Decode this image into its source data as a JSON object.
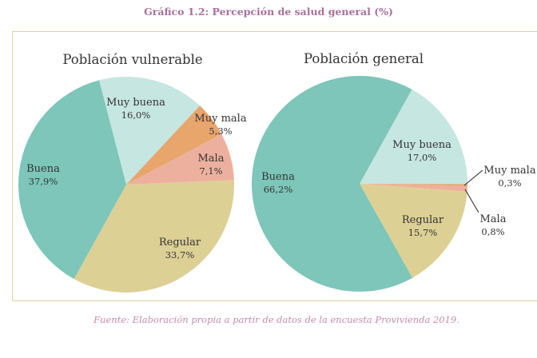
{
  "title": "Gráfico 1.2: Percepción de salud general (%)",
  "source": "Fuente: Elaboración propia a partir de datos de la encuesta Provivienda 2019.",
  "colors": {
    "Buena": "#7dc6b9",
    "Muy buena": "#c6e6e1",
    "Muy mala": "#e8a56c",
    "Mala": "#eeb09e",
    "Regular": "#ddd094"
  },
  "chart_data": [
    {
      "type": "pie",
      "title": "Población vulnerable",
      "slices": [
        {
          "label": "Muy buena",
          "value": 16.0,
          "text": "16,0%"
        },
        {
          "label": "Muy mala",
          "value": 5.3,
          "text": "5,3%"
        },
        {
          "label": "Mala",
          "value": 7.1,
          "text": "7,1%"
        },
        {
          "label": "Regular",
          "value": 33.7,
          "text": "33,7%"
        },
        {
          "label": "Buena",
          "value": 37.9,
          "text": "37,9%"
        }
      ]
    },
    {
      "type": "pie",
      "title": "Población general",
      "slices": [
        {
          "label": "Muy buena",
          "value": 17.0,
          "text": "17,0%"
        },
        {
          "label": "Muy mala",
          "value": 0.3,
          "text": "0,3%"
        },
        {
          "label": "Mala",
          "value": 0.8,
          "text": "0,8%"
        },
        {
          "label": "Regular",
          "value": 15.7,
          "text": "15,7%"
        },
        {
          "label": "Buena",
          "value": 66.2,
          "text": "66,2%"
        }
      ]
    }
  ]
}
